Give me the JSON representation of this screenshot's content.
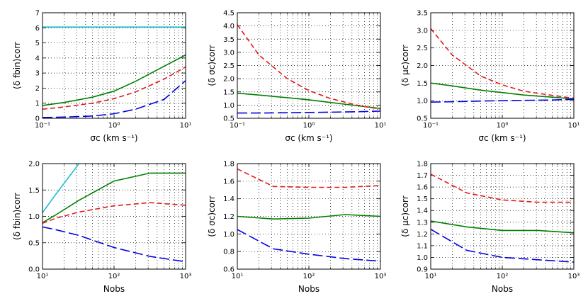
{
  "figure": {
    "panels_description": "2x3 grid of line plots of corrected uncertainties"
  },
  "chart_data": [
    {
      "id": "top-left",
      "type": "line",
      "xscale": "log",
      "xlim": [
        0.1,
        10
      ],
      "ylim": [
        0,
        7
      ],
      "yticks": [
        0,
        1,
        2,
        3,
        4,
        5,
        6,
        7
      ],
      "ytick_labels": [
        "0",
        "1",
        "2",
        "3",
        "4",
        "5",
        "6",
        "7"
      ],
      "xtick_labels": [
        "10⁻¹",
        "10⁰",
        "10¹"
      ],
      "xlabel": "σc (km s⁻¹)",
      "ylabel": "(δ fbin)corr",
      "series": [
        {
          "name": "cyan",
          "color": "#17becf",
          "style": "solid",
          "x": [
            0.1,
            0.2,
            0.5,
            1,
            2,
            5,
            10
          ],
          "y": [
            6.05,
            6.05,
            6.05,
            6.05,
            6.05,
            6.05,
            6.05
          ]
        },
        {
          "name": "green",
          "color": "#007f00",
          "style": "solid",
          "x": [
            0.1,
            0.2,
            0.5,
            1,
            2,
            5,
            10
          ],
          "y": [
            0.85,
            1.05,
            1.4,
            1.8,
            2.45,
            3.45,
            4.2
          ]
        },
        {
          "name": "red",
          "color": "#e41a1c",
          "style": "dashed",
          "x": [
            0.1,
            0.2,
            0.5,
            1,
            2,
            5,
            10
          ],
          "y": [
            0.6,
            0.75,
            1.0,
            1.3,
            1.75,
            2.6,
            3.4
          ]
        },
        {
          "name": "blue",
          "color": "#0000e6",
          "style": "longdash",
          "x": [
            0.1,
            0.2,
            0.5,
            1,
            2,
            5,
            10
          ],
          "y": [
            0.05,
            0.08,
            0.15,
            0.3,
            0.6,
            1.25,
            2.5
          ]
        }
      ]
    },
    {
      "id": "top-middle",
      "type": "line",
      "xscale": "log",
      "xlim": [
        0.1,
        10
      ],
      "ylim": [
        0.5,
        4.5
      ],
      "yticks": [
        0.5,
        1.0,
        1.5,
        2.0,
        2.5,
        3.0,
        3.5,
        4.0,
        4.5
      ],
      "ytick_labels": [
        "0.5",
        "1.0",
        "1.5",
        "2.0",
        "2.5",
        "3.0",
        "3.5",
        "4.0",
        "4.5"
      ],
      "xtick_labels": [
        "10⁻¹",
        "10⁰",
        "10¹"
      ],
      "xlabel": "σc (km s⁻¹)",
      "ylabel": "(δ σc)corr",
      "series": [
        {
          "name": "green",
          "color": "#007f00",
          "style": "solid",
          "x": [
            0.1,
            0.2,
            0.5,
            1,
            2,
            5,
            10
          ],
          "y": [
            1.45,
            1.38,
            1.28,
            1.2,
            1.1,
            0.97,
            0.87
          ]
        },
        {
          "name": "red",
          "color": "#e41a1c",
          "style": "dashed",
          "x": [
            0.1,
            0.2,
            0.5,
            1,
            2,
            5,
            10
          ],
          "y": [
            4.05,
            2.9,
            2.0,
            1.55,
            1.25,
            0.98,
            0.85
          ]
        },
        {
          "name": "blue",
          "color": "#0000e6",
          "style": "longdash",
          "x": [
            0.1,
            0.2,
            0.5,
            1,
            2,
            5,
            10
          ],
          "y": [
            0.7,
            0.7,
            0.71,
            0.72,
            0.73,
            0.75,
            0.77
          ]
        }
      ]
    },
    {
      "id": "top-right",
      "type": "line",
      "xscale": "log",
      "xlim": [
        0.1,
        10
      ],
      "ylim": [
        0.5,
        3.5
      ],
      "yticks": [
        0.5,
        1.0,
        1.5,
        2.0,
        2.5,
        3.0,
        3.5
      ],
      "ytick_labels": [
        "0.5",
        "1.0",
        "1.5",
        "2.0",
        "2.5",
        "3.0",
        "3.5"
      ],
      "xtick_labels": [
        "10⁻¹",
        "10⁰",
        "10¹"
      ],
      "xlabel": "σc (km s⁻¹)",
      "ylabel": "(δ μc)corr",
      "series": [
        {
          "name": "green",
          "color": "#007f00",
          "style": "solid",
          "x": [
            0.1,
            0.2,
            0.5,
            1,
            2,
            5,
            10
          ],
          "y": [
            1.5,
            1.42,
            1.3,
            1.23,
            1.16,
            1.1,
            1.05
          ]
        },
        {
          "name": "red",
          "color": "#e41a1c",
          "style": "dashed",
          "x": [
            0.1,
            0.2,
            0.5,
            1,
            2,
            5,
            10
          ],
          "y": [
            3.05,
            2.3,
            1.7,
            1.45,
            1.27,
            1.15,
            1.07
          ]
        },
        {
          "name": "blue",
          "color": "#0000e6",
          "style": "longdash",
          "x": [
            0.1,
            0.2,
            0.5,
            1,
            2,
            5,
            10
          ],
          "y": [
            0.96,
            0.97,
            0.99,
            1.0,
            1.01,
            1.02,
            1.04
          ]
        }
      ]
    },
    {
      "id": "bottom-left",
      "type": "line",
      "xscale": "log",
      "xlim": [
        10,
        1000
      ],
      "ylim": [
        0,
        2
      ],
      "yticks": [
        0,
        0.5,
        1.0,
        1.5,
        2.0
      ],
      "ytick_labels": [
        "0.0",
        "0.5",
        "1.0",
        "1.5",
        "2.0"
      ],
      "xtick_labels": [
        "10¹",
        "10²",
        "10³"
      ],
      "xlabel": "Nobs",
      "ylabel": "(δ fbin)corr",
      "series": [
        {
          "name": "cyan",
          "color": "#17becf",
          "style": "solid",
          "x": [
            10,
            15,
            22,
            32
          ],
          "y": [
            1.07,
            1.4,
            1.7,
            1.99
          ]
        },
        {
          "name": "green",
          "color": "#007f00",
          "style": "solid",
          "x": [
            10,
            15,
            32,
            100,
            320,
            1000
          ],
          "y": [
            0.88,
            1.02,
            1.3,
            1.67,
            1.82,
            1.82
          ]
        },
        {
          "name": "red",
          "color": "#e41a1c",
          "style": "dashed",
          "x": [
            10,
            15,
            32,
            100,
            320,
            1000
          ],
          "y": [
            0.87,
            0.96,
            1.08,
            1.2,
            1.26,
            1.21
          ]
        },
        {
          "name": "blue",
          "color": "#0000e6",
          "style": "longdash",
          "x": [
            10,
            15,
            32,
            100,
            320,
            1000
          ],
          "y": [
            0.8,
            0.75,
            0.64,
            0.41,
            0.24,
            0.14
          ]
        }
      ]
    },
    {
      "id": "bottom-middle",
      "type": "line",
      "xscale": "log",
      "xlim": [
        10,
        1000
      ],
      "ylim": [
        0.6,
        1.8
      ],
      "yticks": [
        0.6,
        0.8,
        1.0,
        1.2,
        1.4,
        1.6,
        1.8
      ],
      "ytick_labels": [
        "0.6",
        "0.8",
        "1.0",
        "1.2",
        "1.4",
        "1.6",
        "1.8"
      ],
      "xtick_labels": [
        "10¹",
        "10²",
        "10³"
      ],
      "xlabel": "Nobs",
      "ylabel": "(δ σc)corr",
      "series": [
        {
          "name": "red",
          "color": "#e41a1c",
          "style": "dashed",
          "x": [
            10,
            32,
            100,
            320,
            1000
          ],
          "y": [
            1.74,
            1.54,
            1.53,
            1.53,
            1.55
          ]
        },
        {
          "name": "green",
          "color": "#007f00",
          "style": "solid",
          "x": [
            10,
            32,
            100,
            320,
            1000
          ],
          "y": [
            1.2,
            1.17,
            1.18,
            1.22,
            1.2
          ]
        },
        {
          "name": "blue",
          "color": "#0000e6",
          "style": "longdash",
          "x": [
            10,
            32,
            100,
            320,
            1000
          ],
          "y": [
            1.05,
            0.83,
            0.77,
            0.72,
            0.69
          ]
        }
      ]
    },
    {
      "id": "bottom-right",
      "type": "line",
      "xscale": "log",
      "xlim": [
        10,
        1000
      ],
      "ylim": [
        0.9,
        1.8
      ],
      "yticks": [
        0.9,
        1.0,
        1.1,
        1.2,
        1.3,
        1.4,
        1.5,
        1.6,
        1.7,
        1.8
      ],
      "ytick_labels": [
        "0.9",
        "1.0",
        "1.1",
        "1.2",
        "1.3",
        "1.4",
        "1.5",
        "1.6",
        "1.7",
        "1.8"
      ],
      "xtick_labels": [
        "10¹",
        "10²",
        "10³"
      ],
      "xlabel": "Nobs",
      "ylabel": "(δ μc)corr",
      "series": [
        {
          "name": "red",
          "color": "#e41a1c",
          "style": "dashed",
          "x": [
            10,
            32,
            100,
            320,
            1000
          ],
          "y": [
            1.71,
            1.55,
            1.49,
            1.47,
            1.47
          ]
        },
        {
          "name": "green",
          "color": "#007f00",
          "style": "solid",
          "x": [
            10,
            32,
            100,
            320,
            1000
          ],
          "y": [
            1.31,
            1.26,
            1.23,
            1.23,
            1.21
          ]
        },
        {
          "name": "blue",
          "color": "#0000e6",
          "style": "longdash",
          "x": [
            10,
            32,
            100,
            320,
            1000
          ],
          "y": [
            1.24,
            1.06,
            1.0,
            0.98,
            0.96
          ]
        }
      ]
    }
  ]
}
